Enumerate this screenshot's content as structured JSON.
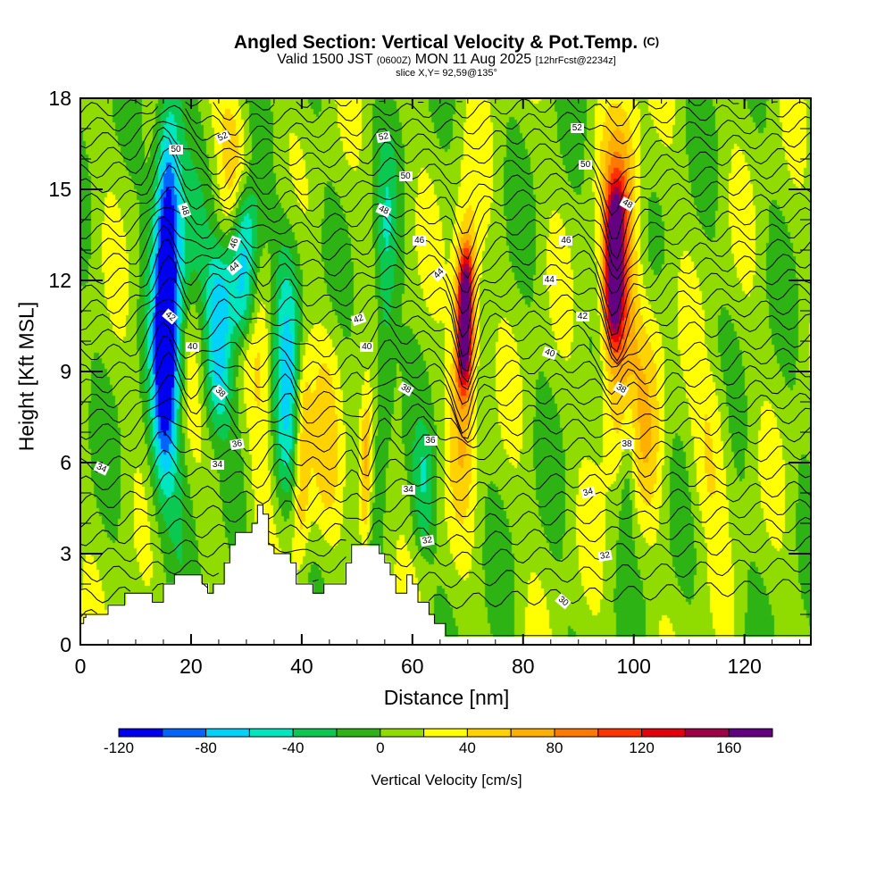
{
  "title": {
    "main": "Angled Section: Vertical Velocity & Pot.Temp.",
    "main_suffix": "(C)",
    "valid_prefix": "Valid 1500 JST",
    "valid_utc": "(0600Z)",
    "valid_date": "MON 11 Aug 2025",
    "forecast": "[12hrFcst@2234z]",
    "slice": "slice X,Y= 92,59@135°"
  },
  "chart_data": {
    "type": "heatmap",
    "title": "Angled Section: Vertical Velocity & Pot.Temp.",
    "xlabel": "Distance [nm]",
    "ylabel": "Height [Kft MSL]",
    "xlim": [
      0,
      132
    ],
    "ylim": [
      0,
      18
    ],
    "x_ticks": [
      "0",
      "20",
      "40",
      "60",
      "80",
      "100",
      "120"
    ],
    "x_tick_values": [
      0,
      20,
      40,
      60,
      80,
      100,
      120
    ],
    "x_minor_step": 5,
    "y_ticks": [
      "0",
      "3",
      "6",
      "9",
      "12",
      "15",
      "18"
    ],
    "y_tick_values": [
      0,
      3,
      6,
      9,
      12,
      15,
      18
    ],
    "y_minor_step": 1,
    "colorbar": {
      "label": "Vertical Velocity [cm/s]",
      "levels": [
        -120,
        -100,
        -80,
        -60,
        -40,
        -20,
        0,
        20,
        40,
        60,
        80,
        100,
        120,
        140,
        160,
        180
      ],
      "tick_labels": [
        "-120",
        "-80",
        "-40",
        "0",
        "40",
        "80",
        "120",
        "160"
      ],
      "tick_values": [
        -120,
        -80,
        -40,
        0,
        40,
        80,
        120,
        160
      ],
      "colors": [
        "#0000f0",
        "#0064ff",
        "#00d2fa",
        "#00e6be",
        "#0ac850",
        "#2db414",
        "#91dc00",
        "#ffff00",
        "#ffd200",
        "#ffaf00",
        "#ff7800",
        "#ff3200",
        "#e6000a",
        "#a00046",
        "#640082"
      ]
    },
    "terrain": {
      "distance_nm": [
        0,
        0.6,
        0.6,
        1,
        1,
        3,
        3,
        5,
        5,
        8,
        8,
        13,
        13,
        15,
        15,
        17,
        17,
        22,
        22,
        23,
        23,
        24,
        24,
        26,
        26,
        27,
        27,
        28,
        28,
        31,
        31,
        32,
        32,
        33,
        33,
        34,
        34,
        35,
        35,
        37,
        37,
        38,
        38,
        39,
        39,
        42,
        42,
        44,
        44,
        48,
        48,
        49,
        49,
        52,
        52,
        54,
        54,
        55,
        55,
        56,
        56,
        57,
        57,
        59,
        59,
        60,
        60,
        61,
        61,
        63,
        63,
        64,
        64,
        66,
        66,
        68,
        68,
        71.5,
        71.5,
        132
      ],
      "height_kft": [
        0.7,
        0.7,
        0.9,
        0.9,
        1.0,
        1.0,
        1.0,
        1.0,
        1.3,
        1.3,
        1.7,
        1.7,
        1.4,
        1.4,
        2.0,
        2.0,
        2.3,
        2.3,
        2.0,
        2.0,
        1.7,
        1.7,
        2.0,
        2.0,
        2.7,
        2.7,
        3.3,
        3.3,
        3.7,
        3.7,
        4.0,
        4.0,
        4.6,
        4.6,
        4.3,
        4.3,
        3.3,
        3.3,
        3.0,
        3.0,
        3.0,
        3.0,
        2.7,
        2.7,
        2.0,
        2.0,
        1.7,
        1.7,
        2.0,
        2.0,
        2.7,
        2.7,
        3.3,
        3.3,
        3.3,
        3.3,
        3.0,
        3.0,
        2.7,
        2.7,
        2.3,
        2.3,
        1.7,
        1.7,
        2.3,
        2.3,
        2.0,
        2.0,
        1.4,
        1.4,
        1.0,
        1.0,
        0.7,
        0.7,
        0.3,
        0.3,
        0.3,
        0.3,
        0.3,
        0.3
      ]
    },
    "features": [
      {
        "x": 15.5,
        "w": 2.2,
        "y0": 6,
        "y1": 18,
        "v": -110
      },
      {
        "x": 17,
        "w": 4,
        "y0": 4,
        "y1": 17,
        "v": -55
      },
      {
        "x": 25,
        "w": 2.5,
        "y0": 7,
        "y1": 13,
        "v": -75
      },
      {
        "x": 29.5,
        "w": 2.5,
        "y0": 10,
        "y1": 15,
        "v": -95
      },
      {
        "x": 37,
        "w": 3,
        "y0": 4,
        "y1": 14,
        "v": -70
      },
      {
        "x": 19.5,
        "w": 2.2,
        "y0": 6,
        "y1": 12,
        "v": 35
      },
      {
        "x": 27.5,
        "w": 3,
        "y0": 13,
        "y1": 18,
        "v": 40
      },
      {
        "x": 33.5,
        "w": 3.5,
        "y0": 3.5,
        "y1": 13,
        "v": 35
      },
      {
        "x": 40,
        "w": 1.6,
        "y0": 2.7,
        "y1": 10,
        "v": 60
      },
      {
        "x": 44.5,
        "w": 3,
        "y0": 4,
        "y1": 11,
        "v": 30
      },
      {
        "x": 51.5,
        "w": 1.2,
        "y0": 3,
        "y1": 8,
        "v": 70
      },
      {
        "x": 55,
        "w": 2,
        "y0": 6,
        "y1": 16,
        "v": -45
      },
      {
        "x": 69.5,
        "w": 1.4,
        "y0": 8.5,
        "y1": 13,
        "v": 165
      },
      {
        "x": 69.5,
        "w": 2.5,
        "y0": 5,
        "y1": 15,
        "v": 60
      },
      {
        "x": 96.5,
        "w": 1.6,
        "y0": 10,
        "y1": 15,
        "v": 155
      },
      {
        "x": 97.5,
        "w": 3.5,
        "y0": 6,
        "y1": 18,
        "v": 75
      },
      {
        "x": 103,
        "w": 3,
        "y0": 4,
        "y1": 12,
        "v": 35
      },
      {
        "x": 114,
        "w": 3.5,
        "y0": 4,
        "y1": 9,
        "v": 30
      },
      {
        "x": 99,
        "w": 1.5,
        "y0": 3.5,
        "y1": 9,
        "v": -35
      },
      {
        "x": 62,
        "w": 2,
        "y0": 3,
        "y1": 7,
        "v": -35
      }
    ],
    "contour_labels": [
      {
        "text": "52",
        "x": 26,
        "y": 16.7,
        "rot": -25
      },
      {
        "text": "50",
        "x": 17.5,
        "y": 16.3,
        "rot": 0
      },
      {
        "text": "48",
        "x": 19,
        "y": 14.3,
        "rot": 70
      },
      {
        "text": "46",
        "x": 28,
        "y": 13.2,
        "rot": -70
      },
      {
        "text": "44",
        "x": 28,
        "y": 12.4,
        "rot": -40
      },
      {
        "text": "42",
        "x": 16.5,
        "y": 10.8,
        "rot": 40
      },
      {
        "text": "40",
        "x": 20.5,
        "y": 9.8,
        "rot": 0
      },
      {
        "text": "38",
        "x": 25.5,
        "y": 8.3,
        "rot": 45
      },
      {
        "text": "36",
        "x": 28.5,
        "y": 6.6,
        "rot": -10
      },
      {
        "text": "34",
        "x": 25,
        "y": 5.9,
        "rot": 0
      },
      {
        "text": "34",
        "x": 4,
        "y": 5.8,
        "rot": 25
      },
      {
        "text": "52",
        "x": 55,
        "y": 16.7,
        "rot": -10
      },
      {
        "text": "50",
        "x": 59,
        "y": 15.4,
        "rot": 0
      },
      {
        "text": "48",
        "x": 55,
        "y": 14.3,
        "rot": 25
      },
      {
        "text": "46",
        "x": 61.5,
        "y": 13.3,
        "rot": 0
      },
      {
        "text": "44",
        "x": 65,
        "y": 12.2,
        "rot": -45
      },
      {
        "text": "42",
        "x": 50.5,
        "y": 10.7,
        "rot": -20
      },
      {
        "text": "40",
        "x": 52,
        "y": 9.8,
        "rot": 0
      },
      {
        "text": "38",
        "x": 59,
        "y": 8.4,
        "rot": 30
      },
      {
        "text": "36",
        "x": 63.5,
        "y": 6.7,
        "rot": 0
      },
      {
        "text": "34",
        "x": 59.5,
        "y": 5.1,
        "rot": 0
      },
      {
        "text": "32",
        "x": 63,
        "y": 3.4,
        "rot": -10
      },
      {
        "text": "52",
        "x": 90,
        "y": 17.0,
        "rot": 0
      },
      {
        "text": "50",
        "x": 91.5,
        "y": 15.8,
        "rot": 0
      },
      {
        "text": "48",
        "x": 99,
        "y": 14.5,
        "rot": 30
      },
      {
        "text": "46",
        "x": 88,
        "y": 13.3,
        "rot": 0
      },
      {
        "text": "44",
        "x": 85,
        "y": 12.0,
        "rot": 0
      },
      {
        "text": "42",
        "x": 91,
        "y": 10.8,
        "rot": 0
      },
      {
        "text": "40",
        "x": 85,
        "y": 9.6,
        "rot": 20
      },
      {
        "text": "38",
        "x": 98,
        "y": 8.4,
        "rot": 30
      },
      {
        "text": "38",
        "x": 99,
        "y": 6.6,
        "rot": 0
      },
      {
        "text": "34",
        "x": 92,
        "y": 5.0,
        "rot": -15
      },
      {
        "text": "32",
        "x": 95,
        "y": 2.9,
        "rot": -10
      },
      {
        "text": "30",
        "x": 87.5,
        "y": 1.4,
        "rot": 40
      }
    ],
    "isentropes_kft_at_left": [
      0.9,
      1.6,
      2.3,
      2.9,
      3.5,
      4.1,
      4.7,
      5.3,
      5.9,
      6.5,
      7.0,
      7.5,
      8.0,
      8.5,
      9.0,
      9.6,
      10.1,
      10.6,
      11.1,
      11.6,
      12.1,
      12.6,
      13.1,
      13.6,
      14.1,
      14.6,
      15.1,
      15.6,
      16.1,
      16.6,
      17.1,
      17.6
    ]
  }
}
